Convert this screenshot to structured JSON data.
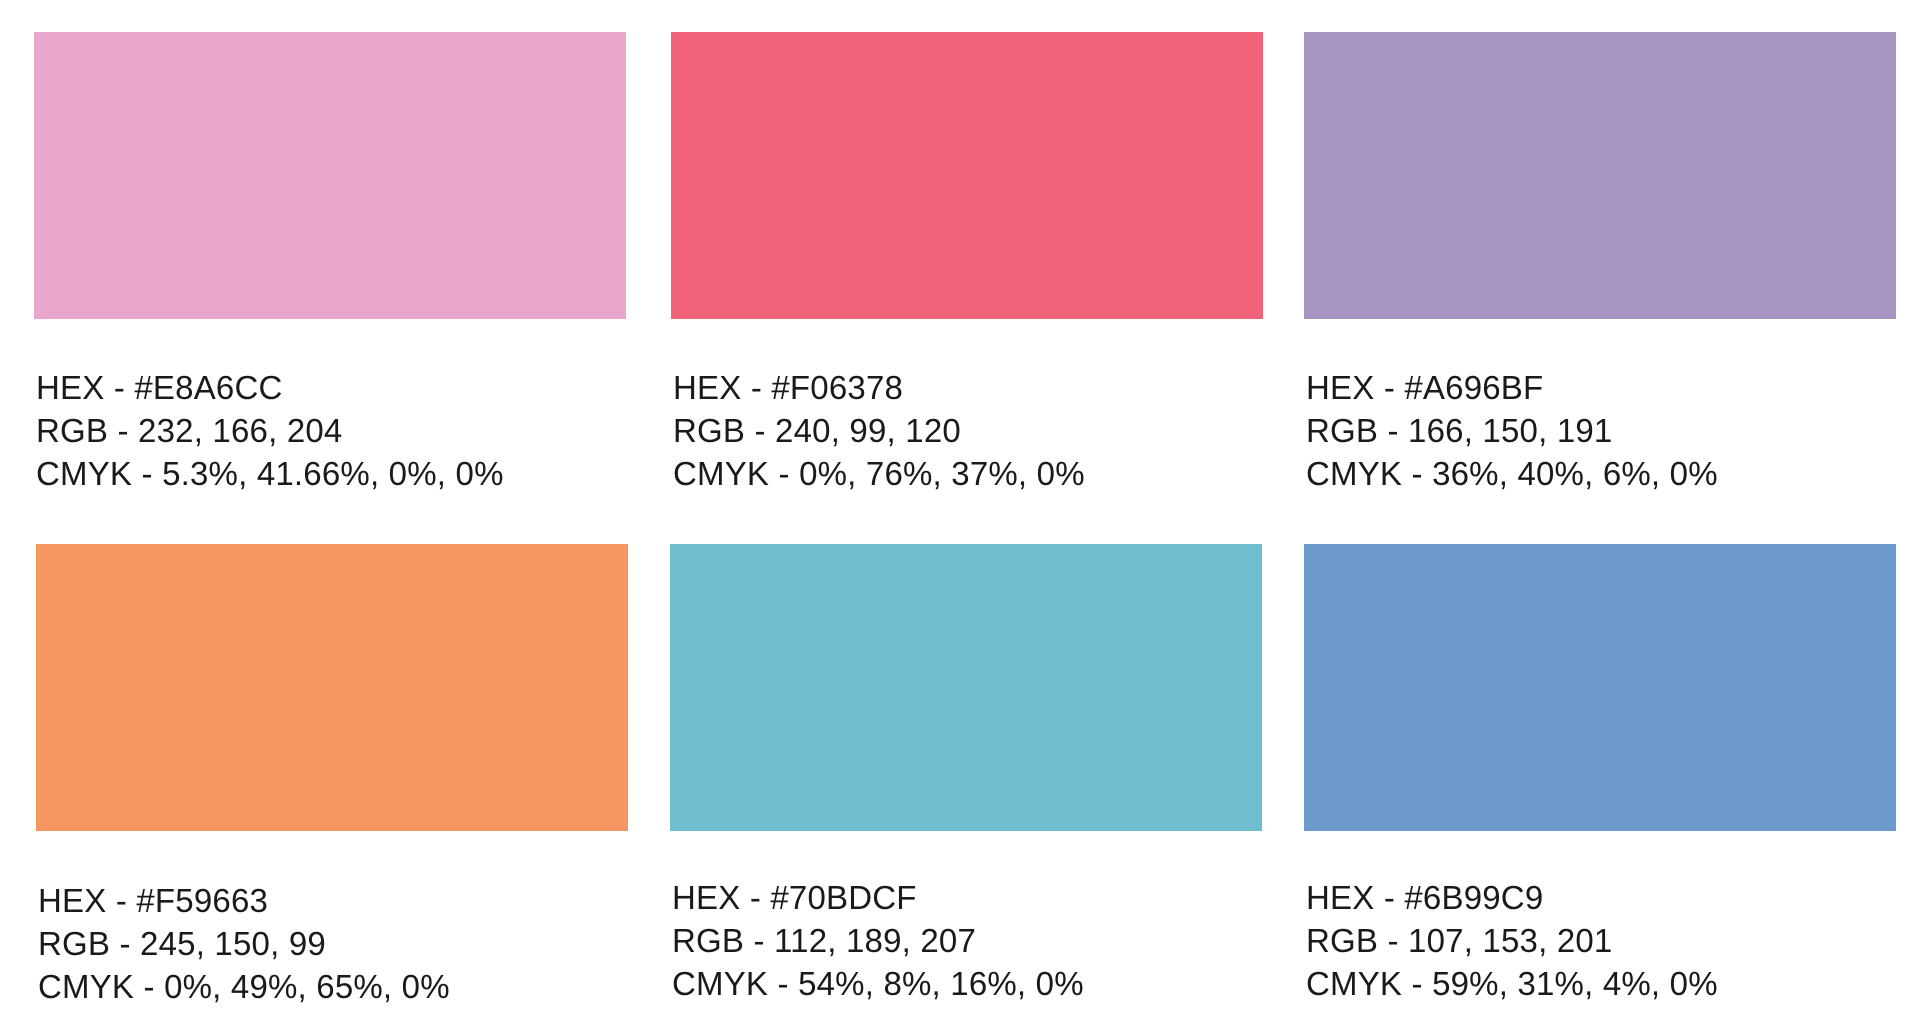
{
  "swatches": [
    {
      "color": "#E8A6CC",
      "hex": "HEX - #E8A6CC",
      "rgb": "RGB - 232, 166, 204",
      "cmyk": "CMYK - 5.3%, 41.66%, 0%, 0%"
    },
    {
      "color": "#F06378",
      "hex": "HEX - #F06378",
      "rgb": "RGB - 240, 99, 120",
      "cmyk": "CMYK - 0%, 76%, 37%, 0%"
    },
    {
      "color": "#A696BF",
      "hex": "HEX - #A696BF",
      "rgb": "RGB - 166, 150, 191",
      "cmyk": "CMYK - 36%, 40%, 6%, 0%"
    },
    {
      "color": "#F59663",
      "hex": "HEX - #F59663",
      "rgb": "RGB - 245, 150, 99",
      "cmyk": "CMYK - 0%, 49%, 65%, 0%"
    },
    {
      "color": "#70BDCF",
      "hex": "HEX - #70BDCF",
      "rgb": "RGB - 112, 189, 207",
      "cmyk": "CMYK - 54%, 8%, 16%, 0%"
    },
    {
      "color": "#6B99C9",
      "hex": "HEX - #6B99C9",
      "rgb": "RGB - 107, 153, 201",
      "cmyk": "CMYK - 59%, 31%, 4%, 0%"
    }
  ]
}
